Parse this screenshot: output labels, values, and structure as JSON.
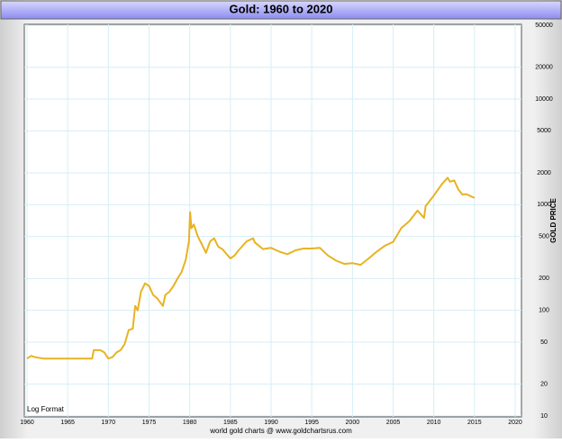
{
  "chart_data": {
    "type": "line",
    "title": "Gold: 1960 to 2020",
    "y_label": "GOLD PRICE",
    "annotation": "Log Format",
    "source": "world gold charts @ www.goldchartsrus.com",
    "x": [
      1960,
      1960.5,
      1961,
      1962,
      1967,
      1968,
      1968.2,
      1969,
      1969.5,
      1970,
      1970.5,
      1971,
      1971.5,
      1972,
      1972.5,
      1973,
      1973.3,
      1973.6,
      1974,
      1974.5,
      1975,
      1975.5,
      1976,
      1976.7,
      1977,
      1977.5,
      1978,
      1978.5,
      1979,
      1979.5,
      1979.9,
      1980.05,
      1980.2,
      1980.5,
      1981,
      1981.5,
      1982,
      1982.5,
      1983,
      1983.5,
      1984,
      1985,
      1985.5,
      1986,
      1987,
      1987.8,
      1988,
      1989,
      1990,
      1991,
      1992,
      1993,
      1994,
      1995,
      1996,
      1997,
      1998,
      1999,
      2000,
      2001,
      2002,
      2003,
      2004,
      2005,
      2006,
      2007,
      2008,
      2008.8,
      2009,
      2010,
      2011,
      2011.7,
      2012,
      2012.5,
      2013,
      2013.5,
      2014,
      2015
    ],
    "values": [
      35,
      37,
      36,
      35,
      35,
      35,
      42,
      42,
      40,
      35,
      36,
      40,
      42,
      48,
      65,
      67,
      110,
      100,
      150,
      180,
      170,
      140,
      130,
      110,
      140,
      150,
      170,
      200,
      230,
      300,
      450,
      850,
      600,
      650,
      500,
      420,
      350,
      450,
      480,
      400,
      380,
      310,
      330,
      370,
      450,
      480,
      440,
      380,
      390,
      360,
      340,
      370,
      385,
      385,
      390,
      330,
      295,
      275,
      280,
      270,
      310,
      360,
      410,
      445,
      600,
      700,
      880,
      750,
      970,
      1220,
      1570,
      1800,
      1650,
      1700,
      1400,
      1250,
      1260,
      1160
    ],
    "color": "#e8b321",
    "xlim": [
      1960,
      2020
    ],
    "xticks": [
      1960,
      1965,
      1970,
      1975,
      1980,
      1985,
      1990,
      1995,
      2000,
      2005,
      2010,
      2015,
      2020
    ],
    "ylim": [
      10,
      50000
    ],
    "yticks": [
      10,
      20,
      50,
      100,
      200,
      500,
      1000,
      2000,
      5000,
      10000,
      20000,
      50000
    ],
    "log_scale": true,
    "grid": true
  }
}
